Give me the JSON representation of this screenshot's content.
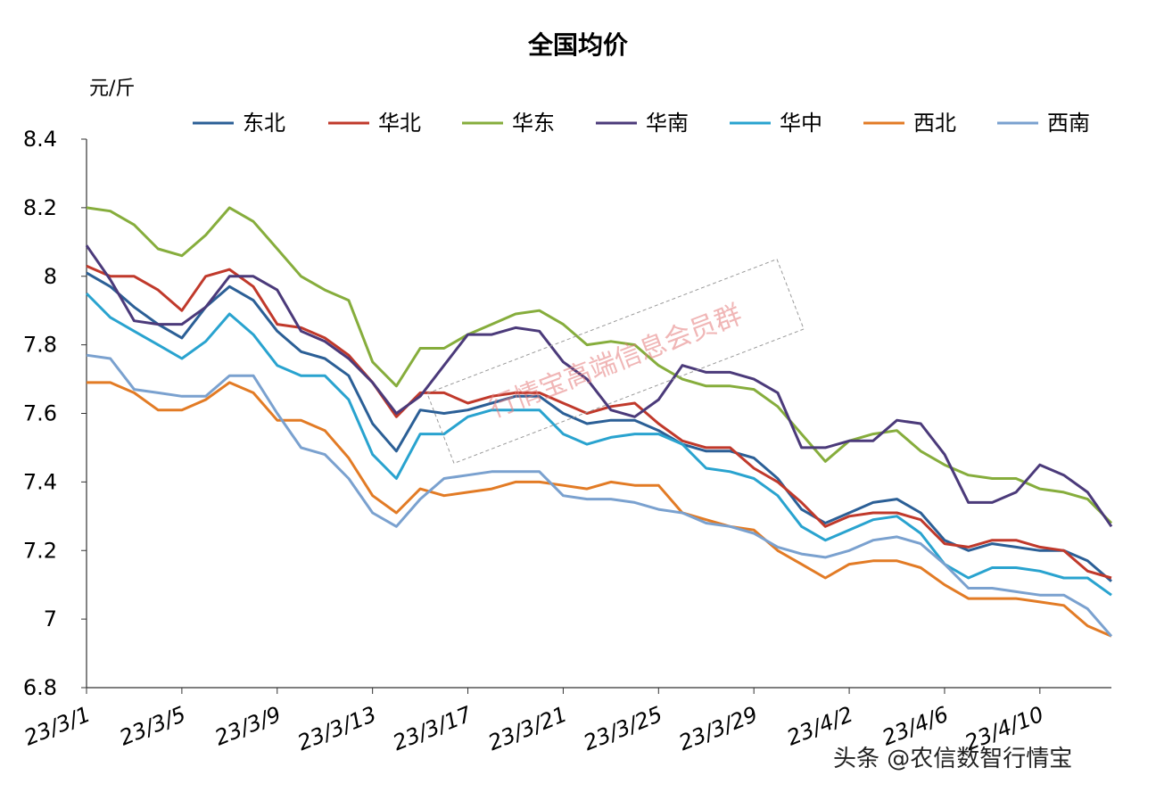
{
  "chart_data": {
    "type": "line",
    "title": "全国均价",
    "unit_label": "元/斤",
    "ylim": [
      6.8,
      8.4
    ],
    "yticks": [
      "6.8",
      "7",
      "7.2",
      "7.4",
      "7.6",
      "7.8",
      "8",
      "8.2",
      "8.4"
    ],
    "x_tick_labels": [
      "23/3/1",
      "23/3/5",
      "23/3/9",
      "23/3/13",
      "23/3/17",
      "23/3/21",
      "23/3/25",
      "23/3/29",
      "23/4/2",
      "23/4/6",
      "23/4/10"
    ],
    "x": [
      "3/1",
      "3/2",
      "3/3",
      "3/4",
      "3/5",
      "3/6",
      "3/7",
      "3/8",
      "3/9",
      "3/10",
      "3/11",
      "3/12",
      "3/13",
      "3/14",
      "3/15",
      "3/16",
      "3/17",
      "3/18",
      "3/19",
      "3/20",
      "3/21",
      "3/22",
      "3/23",
      "3/24",
      "3/25",
      "3/26",
      "3/27",
      "3/28",
      "3/29",
      "3/30",
      "3/31",
      "4/1",
      "4/2",
      "4/3",
      "4/4",
      "4/5",
      "4/6",
      "4/7",
      "4/8",
      "4/9",
      "4/10",
      "4/11",
      "4/12",
      "4/13"
    ],
    "legend_position": "top",
    "grid": false,
    "series": [
      {
        "name": "东北",
        "color": "#2b5f96",
        "values": [
          8.01,
          7.97,
          7.91,
          7.86,
          7.82,
          7.91,
          7.97,
          7.93,
          7.84,
          7.78,
          7.76,
          7.71,
          7.57,
          7.49,
          7.61,
          7.6,
          7.61,
          7.63,
          7.65,
          7.65,
          7.6,
          7.57,
          7.58,
          7.58,
          7.55,
          7.51,
          7.49,
          7.49,
          7.47,
          7.41,
          7.32,
          7.28,
          7.31,
          7.34,
          7.35,
          7.31,
          7.23,
          7.2,
          7.22,
          7.21,
          7.2,
          7.2,
          7.17,
          7.11
        ]
      },
      {
        "name": "华北",
        "color": "#c0392b",
        "values": [
          8.03,
          8.0,
          8.0,
          7.96,
          7.9,
          8.0,
          8.02,
          7.97,
          7.86,
          7.85,
          7.82,
          7.77,
          7.69,
          7.59,
          7.66,
          7.66,
          7.63,
          7.65,
          7.66,
          7.66,
          7.63,
          7.6,
          7.62,
          7.63,
          7.57,
          7.52,
          7.5,
          7.5,
          7.44,
          7.4,
          7.34,
          7.27,
          7.3,
          7.31,
          7.31,
          7.29,
          7.22,
          7.21,
          7.23,
          7.23,
          7.21,
          7.2,
          7.14,
          7.12
        ]
      },
      {
        "name": "华东",
        "color": "#86ad3c",
        "values": [
          8.2,
          8.19,
          8.15,
          8.08,
          8.06,
          8.12,
          8.2,
          8.16,
          8.08,
          8.0,
          7.96,
          7.93,
          7.75,
          7.68,
          7.79,
          7.79,
          7.83,
          7.86,
          7.89,
          7.9,
          7.86,
          7.8,
          7.81,
          7.8,
          7.74,
          7.7,
          7.68,
          7.68,
          7.67,
          7.62,
          7.54,
          7.46,
          7.52,
          7.54,
          7.55,
          7.49,
          7.45,
          7.42,
          7.41,
          7.41,
          7.38,
          7.37,
          7.35,
          7.28
        ]
      },
      {
        "name": "华南",
        "color": "#4b3a7a",
        "values": [
          8.09,
          7.99,
          7.87,
          7.86,
          7.86,
          7.91,
          8.0,
          8.0,
          7.96,
          7.84,
          7.81,
          7.76,
          7.69,
          7.6,
          7.65,
          7.74,
          7.83,
          7.83,
          7.85,
          7.84,
          7.75,
          7.7,
          7.61,
          7.59,
          7.64,
          7.74,
          7.72,
          7.72,
          7.7,
          7.66,
          7.5,
          7.5,
          7.52,
          7.52,
          7.58,
          7.57,
          7.48,
          7.34,
          7.34,
          7.37,
          7.45,
          7.42,
          7.37,
          7.27
        ]
      },
      {
        "name": "华中",
        "color": "#29a3cf",
        "values": [
          7.95,
          7.88,
          7.84,
          7.8,
          7.76,
          7.81,
          7.89,
          7.83,
          7.74,
          7.71,
          7.71,
          7.64,
          7.48,
          7.41,
          7.54,
          7.54,
          7.59,
          7.61,
          7.61,
          7.61,
          7.54,
          7.51,
          7.53,
          7.54,
          7.54,
          7.51,
          7.44,
          7.43,
          7.41,
          7.36,
          7.27,
          7.23,
          7.26,
          7.29,
          7.3,
          7.25,
          7.16,
          7.12,
          7.15,
          7.15,
          7.14,
          7.12,
          7.12,
          7.07
        ]
      },
      {
        "name": "西北",
        "color": "#e27b25",
        "values": [
          7.69,
          7.69,
          7.66,
          7.61,
          7.61,
          7.64,
          7.69,
          7.66,
          7.58,
          7.58,
          7.55,
          7.47,
          7.36,
          7.31,
          7.38,
          7.36,
          7.37,
          7.38,
          7.4,
          7.4,
          7.39,
          7.38,
          7.4,
          7.39,
          7.39,
          7.31,
          7.29,
          7.27,
          7.26,
          7.2,
          7.16,
          7.12,
          7.16,
          7.17,
          7.17,
          7.15,
          7.1,
          7.06,
          7.06,
          7.06,
          7.05,
          7.04,
          6.98,
          6.95
        ]
      },
      {
        "name": "西南",
        "color": "#7aa1cf",
        "values": [
          7.77,
          7.76,
          7.67,
          7.66,
          7.65,
          7.65,
          7.71,
          7.71,
          7.6,
          7.5,
          7.48,
          7.41,
          7.31,
          7.27,
          7.35,
          7.41,
          7.42,
          7.43,
          7.43,
          7.43,
          7.36,
          7.35,
          7.35,
          7.34,
          7.32,
          7.31,
          7.28,
          7.27,
          7.25,
          7.21,
          7.19,
          7.18,
          7.2,
          7.23,
          7.24,
          7.22,
          7.16,
          7.09,
          7.09,
          7.08,
          7.07,
          7.07,
          7.03,
          6.95
        ]
      }
    ]
  },
  "watermark": {
    "text": "行情宝高端信息会员群"
  },
  "credit": {
    "text": "头条 @农信数智行情宝"
  }
}
